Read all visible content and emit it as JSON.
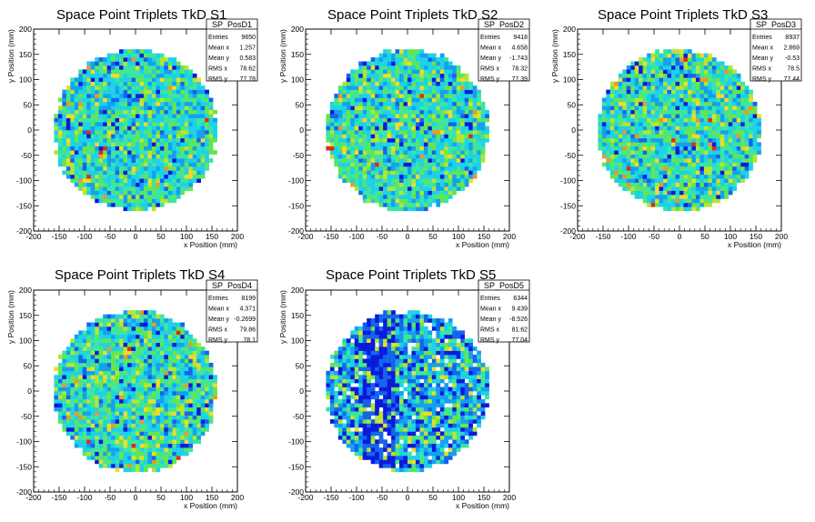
{
  "colors": {
    "palette": [
      "#0a1adc",
      "#1464ee",
      "#14a0f0",
      "#1ed2e6",
      "#3ce6a0",
      "#64e650",
      "#b4e632",
      "#f0dc28",
      "#f09628",
      "#e62814"
    ]
  },
  "chart_data": [
    {
      "type": "heatmap",
      "title": "Space Point Triplets TkD S1",
      "xlabel": "x Position (mm)",
      "ylabel": "y Position (mm)",
      "xlim": [
        -200,
        200
      ],
      "ylim": [
        -200,
        200
      ],
      "xticks": [
        "-200",
        "-150",
        "-100",
        "-50",
        "0",
        "50",
        "100",
        "150",
        "200"
      ],
      "yticks": [
        "-200",
        "-150",
        "-100",
        "-50",
        "0",
        "50",
        "100",
        "150",
        "200"
      ],
      "shape": "disc",
      "radius_mm": 160,
      "bin_mm": 8,
      "stats": {
        "name": "SP_PosD1",
        "rows": [
          {
            "label": "Entries",
            "value": "9650"
          },
          {
            "label": "Mean x",
            "value": "1.257"
          },
          {
            "label": "Mean y",
            "value": "0.583"
          },
          {
            "label": "RMS x",
            "value": "78.62"
          },
          {
            "label": "RMS y",
            "value": "77.78"
          }
        ]
      }
    },
    {
      "type": "heatmap",
      "title": "Space Point Triplets TkD S2",
      "xlabel": "x Position (mm)",
      "ylabel": "y Position (mm)",
      "xlim": [
        -200,
        200
      ],
      "ylim": [
        -200,
        200
      ],
      "xticks": [
        "-200",
        "-150",
        "-100",
        "-50",
        "0",
        "50",
        "100",
        "150",
        "200"
      ],
      "yticks": [
        "-200",
        "-150",
        "-100",
        "-50",
        "0",
        "50",
        "100",
        "150",
        "200"
      ],
      "shape": "disc",
      "radius_mm": 160,
      "bin_mm": 8,
      "stats": {
        "name": "SP_PosD2",
        "rows": [
          {
            "label": "Entries",
            "value": "9418"
          },
          {
            "label": "Mean x",
            "value": "4.658"
          },
          {
            "label": "Mean y",
            "value": "-1.743"
          },
          {
            "label": "RMS x",
            "value": "78.32"
          },
          {
            "label": "RMS y",
            "value": "77.39"
          }
        ]
      }
    },
    {
      "type": "heatmap",
      "title": "Space Point Triplets TkD S3",
      "xlabel": "x Position (mm)",
      "ylabel": "y Position (mm)",
      "xlim": [
        -200,
        200
      ],
      "ylim": [
        -200,
        200
      ],
      "xticks": [
        "-200",
        "-150",
        "-100",
        "-50",
        "0",
        "50",
        "100",
        "150",
        "200"
      ],
      "yticks": [
        "-200",
        "-150",
        "-100",
        "-50",
        "0",
        "50",
        "100",
        "150",
        "200"
      ],
      "shape": "disc",
      "radius_mm": 160,
      "bin_mm": 8,
      "stats": {
        "name": "SP_PosD3",
        "rows": [
          {
            "label": "Entries",
            "value": "8937"
          },
          {
            "label": "Mean x",
            "value": "2.869"
          },
          {
            "label": "Mean y",
            "value": "-0.53"
          },
          {
            "label": "RMS x",
            "value": "78.5"
          },
          {
            "label": "RMS y",
            "value": "77.44"
          }
        ]
      }
    },
    {
      "type": "heatmap",
      "title": "Space Point Triplets TkD S4",
      "xlabel": "x Position (mm)",
      "ylabel": "y Position (mm)",
      "xlim": [
        -200,
        200
      ],
      "ylim": [
        -200,
        200
      ],
      "xticks": [
        "-200",
        "-150",
        "-100",
        "-50",
        "0",
        "50",
        "100",
        "150",
        "200"
      ],
      "yticks": [
        "-200",
        "-150",
        "-100",
        "-50",
        "0",
        "50",
        "100",
        "150",
        "200"
      ],
      "shape": "disc",
      "radius_mm": 160,
      "bin_mm": 8,
      "stats": {
        "name": "SP_PosD4",
        "rows": [
          {
            "label": "Entries",
            "value": "8199"
          },
          {
            "label": "Mean x",
            "value": "4.371"
          },
          {
            "label": "Mean y",
            "value": "-0.2699"
          },
          {
            "label": "RMS x",
            "value": "79.86"
          },
          {
            "label": "RMS y",
            "value": "78.1"
          }
        ]
      }
    },
    {
      "type": "heatmap",
      "title": "Space Point Triplets TkD S5",
      "xlabel": "x Position (mm)",
      "ylabel": "y Position (mm)",
      "xlim": [
        -200,
        200
      ],
      "ylim": [
        -200,
        200
      ],
      "xticks": [
        "-200",
        "-150",
        "-100",
        "-50",
        "0",
        "50",
        "100",
        "150",
        "200"
      ],
      "yticks": [
        "-200",
        "-150",
        "-100",
        "-50",
        "0",
        "50",
        "100",
        "150",
        "200"
      ],
      "shape": "disc",
      "radius_mm": 160,
      "bin_mm": 8,
      "stats": {
        "name": "SP_PosD5",
        "rows": [
          {
            "label": "Entries",
            "value": "6344"
          },
          {
            "label": "Mean x",
            "value": "9.439"
          },
          {
            "label": "Mean y",
            "value": "-8.526"
          },
          {
            "label": "RMS x",
            "value": "81.62"
          },
          {
            "label": "RMS y",
            "value": "77.04"
          }
        ]
      }
    }
  ]
}
